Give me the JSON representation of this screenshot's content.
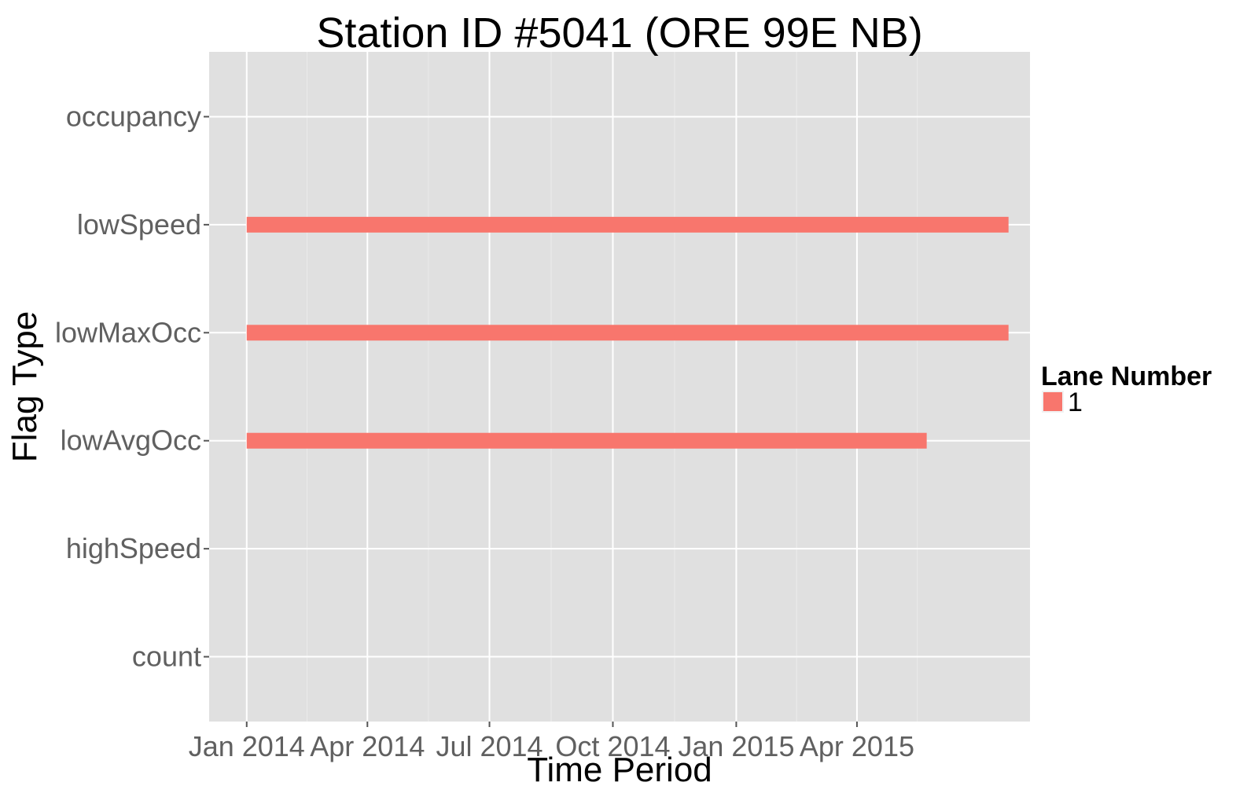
{
  "chart_data": {
    "type": "bar",
    "subtype": "horizontal-segment",
    "title": "Station ID #5041 (ORE 99E NB)",
    "xlabel": "Time Period",
    "ylabel": "Flag Type",
    "x_scale": "date",
    "xlim": [
      "2013-12-04",
      "2015-08-08"
    ],
    "x_ticks": [
      "2014-01-01",
      "2014-04-01",
      "2014-07-01",
      "2014-10-01",
      "2015-01-01",
      "2015-04-01"
    ],
    "x_tick_labels": [
      "Jan 2014",
      "Apr 2014",
      "Jul 2014",
      "Oct 2014",
      "Jan 2015",
      "Apr 2015"
    ],
    "categories": [
      "count",
      "highSpeed",
      "lowAvgOcc",
      "lowMaxOcc",
      "lowSpeed",
      "occupancy"
    ],
    "grid": true,
    "legend": {
      "title": "Lane Number",
      "position": "right",
      "entries": [
        {
          "label": "1",
          "color": "#F8766D"
        }
      ]
    },
    "series": [
      {
        "name": "1",
        "color": "#F8766D",
        "segments": [
          {
            "category": "lowSpeed",
            "start": "2014-01-01",
            "end": "2015-07-23"
          },
          {
            "category": "lowMaxOcc",
            "start": "2014-01-01",
            "end": "2015-07-23"
          },
          {
            "category": "lowAvgOcc",
            "start": "2014-01-01",
            "end": "2015-05-23"
          }
        ]
      }
    ],
    "colors": {
      "panel_background": "#E0E0E0",
      "grid_major": "#FFFFFF",
      "grid_minor": "#EBEBEB",
      "tick_text": "#606060"
    }
  }
}
